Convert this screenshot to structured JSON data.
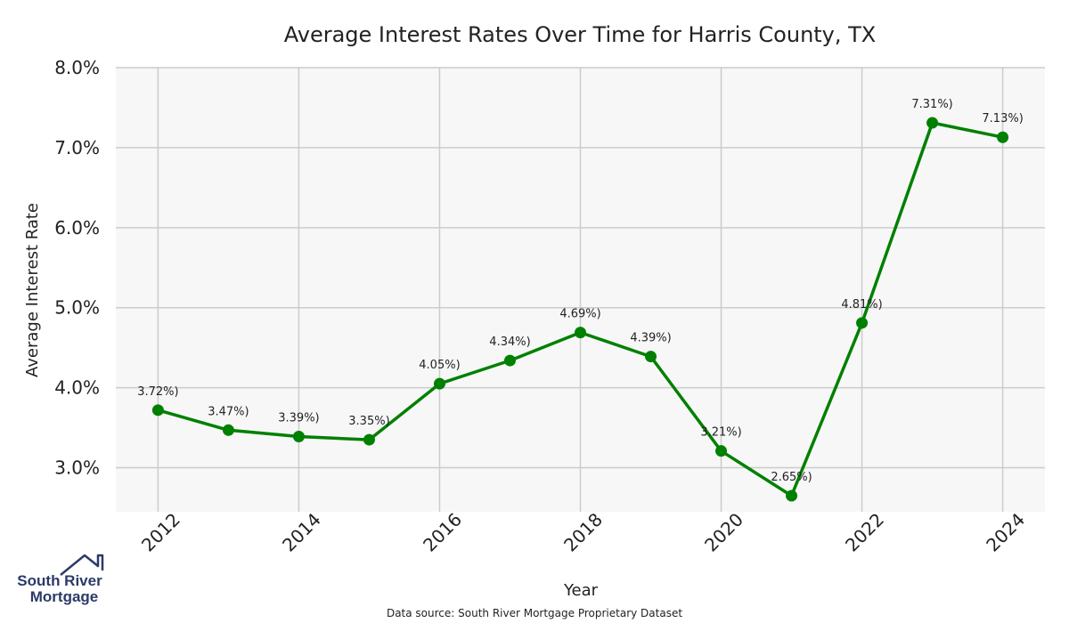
{
  "chart_data": {
    "type": "line",
    "title": "Average Interest Rates Over Time for Harris County, TX",
    "xlabel": "Year",
    "ylabel": "Average Interest Rate",
    "x": [
      2012,
      2013,
      2014,
      2015,
      2016,
      2017,
      2018,
      2019,
      2020,
      2021,
      2022,
      2023,
      2024
    ],
    "series": [
      {
        "name": "",
        "values": [
          3.72,
          3.47,
          3.39,
          3.35,
          4.05,
          4.34,
          4.69,
          4.39,
          3.21,
          2.65,
          4.81,
          7.31,
          7.13
        ],
        "data_labels": [
          "3.72%)",
          "3.47%)",
          "3.39%)",
          "3.35%)",
          "4.05%)",
          "4.34%)",
          "4.69%)",
          "4.39%)",
          "3.21%)",
          "2.65%)",
          "4.81%)",
          "7.31%)",
          "7.13%)"
        ]
      }
    ],
    "xticks": [
      "2012",
      "2014",
      "2016",
      "2018",
      "2020",
      "2022",
      "2024"
    ],
    "xtick_values": [
      2012,
      2014,
      2016,
      2018,
      2020,
      2022,
      2024
    ],
    "yticks": [
      "3.0%",
      "4.0%",
      "5.0%",
      "6.0%",
      "7.0%",
      "8.0%"
    ],
    "ytick_values": [
      3,
      4,
      5,
      6,
      7,
      8
    ],
    "xlim": [
      2011.4,
      2024.6
    ],
    "ylim": [
      2.45,
      8.0
    ],
    "grid": true,
    "line_color": "#008000",
    "plot_background": "#f7f7f7",
    "grid_color": "#cccccc"
  },
  "footer": {
    "source": "Data source: South River Mortgage Proprietary Dataset"
  },
  "logo": {
    "line1": "South River",
    "line2": "Mortgage",
    "color": "#2b3a67"
  }
}
